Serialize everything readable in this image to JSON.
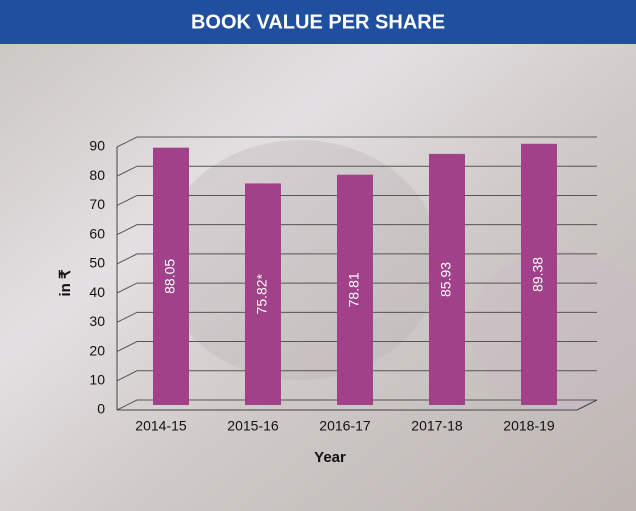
{
  "chart_data": {
    "type": "bar",
    "title": "BOOK VALUE PER SHARE",
    "x_label": "Year",
    "y_label": "in ₹",
    "categories": [
      "2014-15",
      "2015-16",
      "2016-17",
      "2017-18",
      "2018-19"
    ],
    "values": [
      88.05,
      75.82,
      78.81,
      85.93,
      89.38
    ],
    "value_labels": [
      "88.05",
      "75.82*",
      "78.81",
      "85.93",
      "89.38"
    ],
    "color": "#a0418a",
    "ylim": [
      0,
      90
    ],
    "yticks": [
      0,
      10,
      20,
      30,
      40,
      50,
      60,
      70,
      80,
      90
    ],
    "grid": true
  }
}
